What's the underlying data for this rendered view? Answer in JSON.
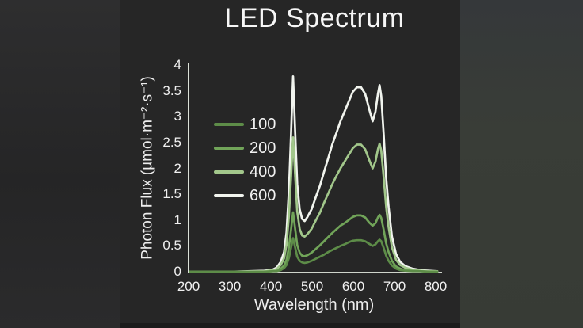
{
  "colors": {
    "panel_background": "#262626",
    "left_band": "#2a2a2b",
    "right_band": "#393c37",
    "axis_line": "#d8ddd4",
    "text": "#f2f2f2",
    "series_100": "#5d8c48",
    "series_200": "#71a459",
    "series_400": "#a2c78b",
    "series_600": "#f1f4ee"
  },
  "chart_data": {
    "type": "line",
    "title": "LED Spectrum",
    "xlabel": "Wavelength (nm)",
    "ylabel": "Photon Flux (µmol·m⁻²·s⁻¹)",
    "xlim": [
      200,
      800
    ],
    "ylim": [
      0,
      4
    ],
    "grid": false,
    "legend_position": "inside-upper-left",
    "x_tick_labels": [
      "200",
      "300",
      "400",
      "500",
      "600",
      "700",
      "800"
    ],
    "x_ticks": [
      200,
      300,
      400,
      500,
      600,
      700,
      800
    ],
    "y_tick_labels": [
      "0",
      "0.5",
      "1",
      "1.5",
      "2",
      "2.5",
      "3",
      "3.5",
      "4"
    ],
    "y_ticks": [
      0,
      0.5,
      1,
      1.5,
      2,
      2.5,
      3,
      3.5,
      4
    ],
    "x": [
      200,
      300,
      380,
      400,
      410,
      420,
      428,
      434,
      440,
      445,
      450,
      455,
      460,
      466,
      472,
      478,
      485,
      495,
      505,
      515,
      525,
      535,
      545,
      555,
      565,
      575,
      585,
      595,
      605,
      615,
      625,
      635,
      643,
      650,
      656,
      660,
      664,
      670,
      676,
      682,
      690,
      700,
      710,
      722,
      740,
      760,
      780,
      800
    ],
    "series": [
      {
        "name": "100",
        "color": "#5d8c48",
        "values": [
          0,
          0,
          0,
          0.01,
          0.01,
          0.03,
          0.07,
          0.13,
          0.27,
          0.46,
          0.65,
          0.47,
          0.29,
          0.21,
          0.18,
          0.17,
          0.18,
          0.21,
          0.25,
          0.29,
          0.33,
          0.38,
          0.42,
          0.46,
          0.5,
          0.53,
          0.57,
          0.6,
          0.61,
          0.61,
          0.59,
          0.54,
          0.5,
          0.53,
          0.59,
          0.62,
          0.59,
          0.46,
          0.31,
          0.21,
          0.12,
          0.06,
          0.03,
          0.02,
          0.01,
          0.01,
          0,
          0
        ]
      },
      {
        "name": "200",
        "color": "#71a459",
        "values": [
          0,
          0,
          0,
          0.01,
          0.02,
          0.06,
          0.12,
          0.23,
          0.48,
          0.81,
          1.15,
          0.83,
          0.52,
          0.37,
          0.31,
          0.3,
          0.32,
          0.37,
          0.44,
          0.51,
          0.59,
          0.67,
          0.75,
          0.82,
          0.89,
          0.94,
          1,
          1.06,
          1.09,
          1.09,
          1.05,
          0.95,
          0.89,
          0.94,
          1.05,
          1.1,
          1.04,
          0.81,
          0.55,
          0.38,
          0.21,
          0.1,
          0.06,
          0.03,
          0.02,
          0.01,
          0,
          0
        ]
      },
      {
        "name": "400",
        "color": "#a2c78b",
        "values": [
          0,
          0,
          0.01,
          0.03,
          0.05,
          0.13,
          0.26,
          0.52,
          1.09,
          1.82,
          2.6,
          1.87,
          1.17,
          0.83,
          0.7,
          0.68,
          0.73,
          0.83,
          0.99,
          1.14,
          1.33,
          1.51,
          1.69,
          1.85,
          2,
          2.13,
          2.26,
          2.39,
          2.46,
          2.46,
          2.37,
          2.16,
          2,
          2.13,
          2.37,
          2.48,
          2.34,
          1.82,
          1.25,
          0.86,
          0.47,
          0.23,
          0.13,
          0.08,
          0.04,
          0.02,
          0.01,
          0.01
        ]
      },
      {
        "name": "600",
        "color": "#f1f4ee",
        "values": [
          0,
          0,
          0.02,
          0.04,
          0.08,
          0.19,
          0.38,
          0.76,
          1.59,
          2.65,
          3.78,
          2.72,
          1.7,
          1.21,
          1.02,
          0.98,
          1.06,
          1.21,
          1.44,
          1.66,
          1.93,
          2.19,
          2.46,
          2.68,
          2.91,
          3.1,
          3.29,
          3.48,
          3.57,
          3.57,
          3.44,
          3.14,
          2.91,
          3.1,
          3.44,
          3.61,
          3.4,
          2.65,
          1.81,
          1.25,
          0.68,
          0.34,
          0.19,
          0.11,
          0.06,
          0.03,
          0.02,
          0.01
        ]
      }
    ]
  }
}
